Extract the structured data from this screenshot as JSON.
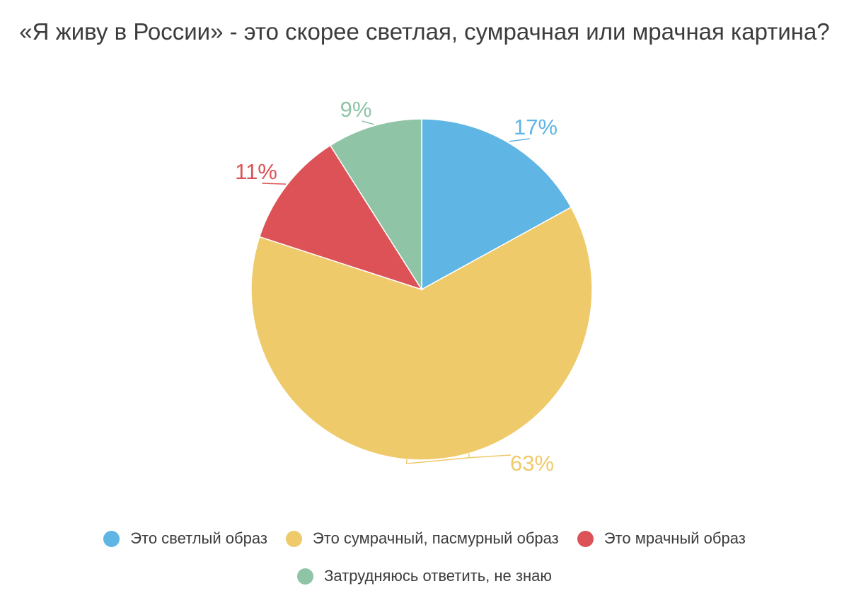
{
  "chart_data": {
    "type": "pie",
    "title": "«Я живу в России» - это скорее светлая, сумрачная или мрачная картина?",
    "slices": [
      {
        "name": "Это светлый образ",
        "value": 17,
        "label": "17%",
        "color": "#5fb5e4"
      },
      {
        "name": "Это сумрачный, пасмурный образ",
        "value": 63,
        "label": "63%",
        "color": "#efca6a"
      },
      {
        "name": "Это мрачный образ",
        "value": 11,
        "label": "11%",
        "color": "#dc5256"
      },
      {
        "name": "Затрудняюсь ответить, не знаю",
        "value": 9,
        "label": "9%",
        "color": "#8fc4a6"
      }
    ],
    "start_angle_deg": 0,
    "direction": "clockwise",
    "legend_position": "bottom"
  }
}
